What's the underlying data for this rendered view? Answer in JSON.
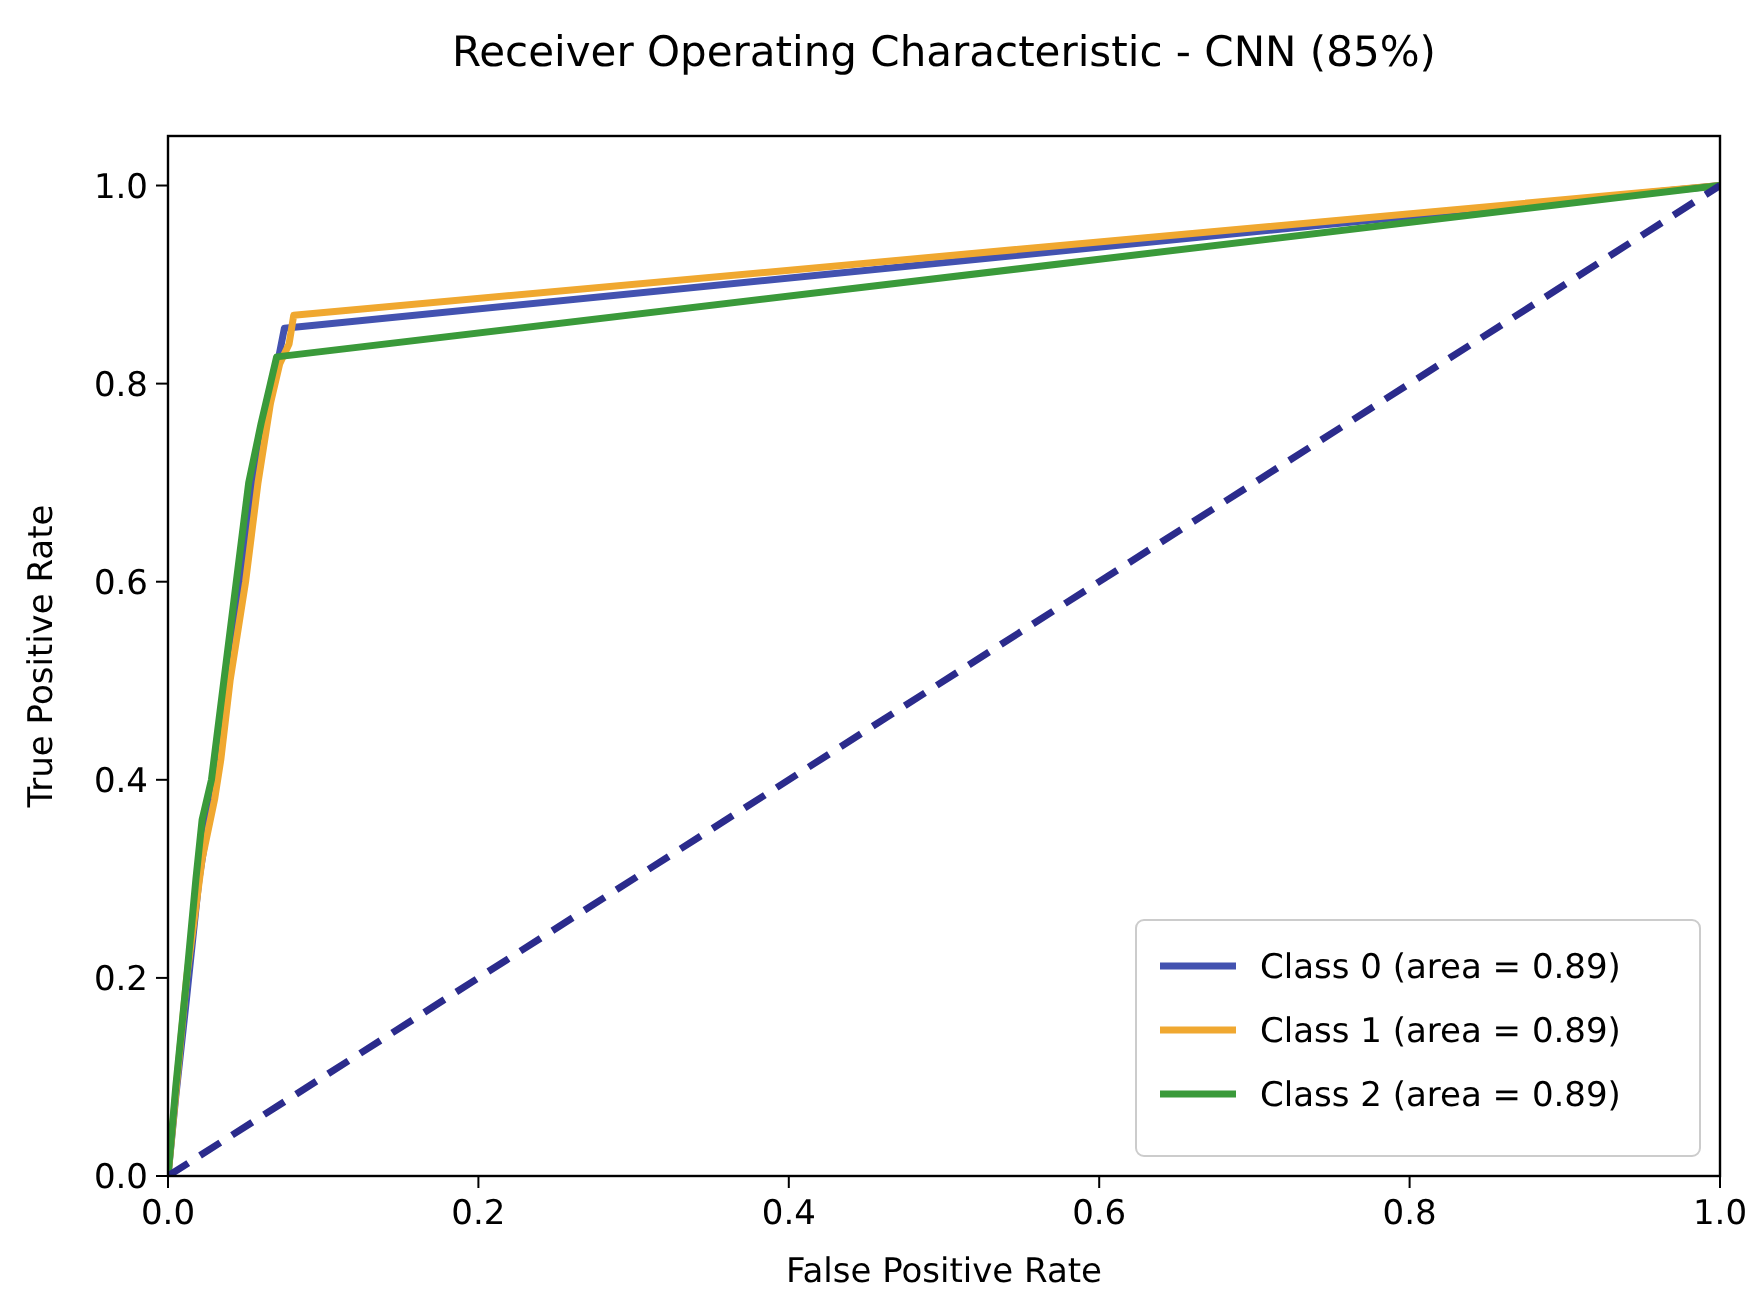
{
  "chart_data": {
    "type": "line",
    "title": "Receiver Operating Characteristic - CNN (85%)",
    "xlabel": "False Positive Rate",
    "ylabel": "True Positive Rate",
    "xlim": [
      0,
      1.0
    ],
    "ylim": [
      0,
      1.05
    ],
    "xticks": [
      {
        "value": 0,
        "label": "0.0"
      },
      {
        "value": 0.2,
        "label": "0.2"
      },
      {
        "value": 0.4,
        "label": "0.4"
      },
      {
        "value": 0.6,
        "label": "0.6"
      },
      {
        "value": 0.8,
        "label": "0.8"
      },
      {
        "value": 1,
        "label": "1.0"
      }
    ],
    "yticks": [
      {
        "value": 0,
        "label": "0.0"
      },
      {
        "value": 0.2,
        "label": "0.2"
      },
      {
        "value": 0.4,
        "label": "0.4"
      },
      {
        "value": 0.6,
        "label": "0.6"
      },
      {
        "value": 0.8,
        "label": "0.8"
      },
      {
        "value": 1,
        "label": "1.0"
      }
    ],
    "legend": "bottom right",
    "grid": false,
    "series": [
      {
        "name": "Class 0 (area = 0.89)",
        "color": "#4352b0",
        "x": [
          0,
          0.005,
          0.012,
          0.02,
          0.026,
          0.03,
          0.046,
          0.055,
          0.062,
          0.068,
          0.075,
          1
        ],
        "values": [
          0,
          0.08,
          0.18,
          0.3,
          0.36,
          0.4,
          0.6,
          0.7,
          0.75,
          0.8,
          0.856,
          1
        ]
      },
      {
        "name": "Class 1 (area = 0.89)",
        "color": "#f0a830",
        "x": [
          0,
          0.006,
          0.012,
          0.022,
          0.03,
          0.034,
          0.04,
          0.05,
          0.058,
          0.066,
          0.072,
          0.078,
          0.081,
          1
        ],
        "values": [
          0,
          0.1,
          0.2,
          0.32,
          0.38,
          0.42,
          0.5,
          0.6,
          0.7,
          0.78,
          0.82,
          0.84,
          0.869,
          1
        ]
      },
      {
        "name": "Class 2 (area = 0.89)",
        "color": "#3a9a3a",
        "x": [
          0,
          0.005,
          0.012,
          0.018,
          0.022,
          0.028,
          0.036,
          0.044,
          0.052,
          0.06,
          0.066,
          0.07,
          1
        ],
        "values": [
          0,
          0.09,
          0.2,
          0.3,
          0.36,
          0.4,
          0.5,
          0.6,
          0.7,
          0.76,
          0.8,
          0.827,
          1
        ]
      },
      {
        "color": "#2b2b8c",
        "line_style": "dashed",
        "x": [
          0,
          1
        ],
        "values": [
          0,
          1
        ]
      }
    ]
  }
}
